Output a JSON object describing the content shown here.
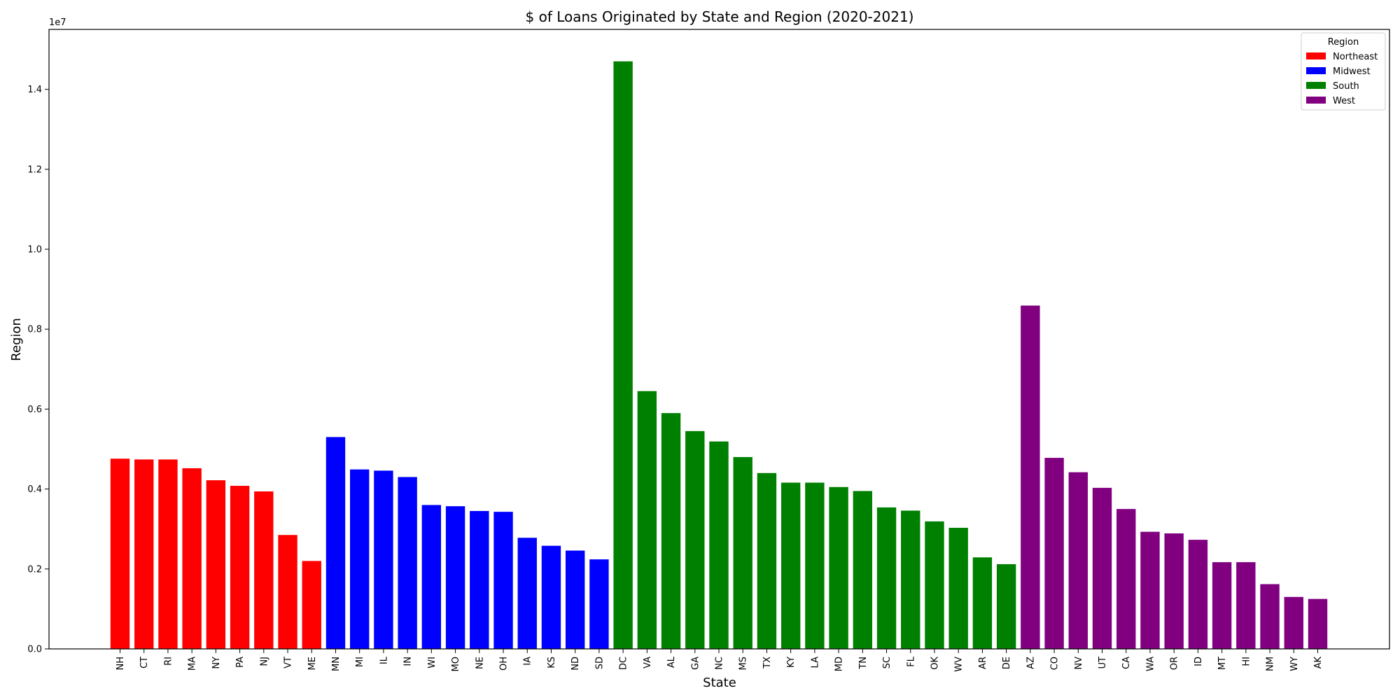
{
  "chart_data": {
    "type": "bar",
    "title": "$ of Loans Originated by State and Region (2020-2021)",
    "xlabel": "State",
    "ylabel": "Region",
    "y_offset_label": "1e7",
    "ylim": [
      0,
      15500000
    ],
    "yticks": [
      0,
      2000000,
      4000000,
      6000000,
      8000000,
      10000000,
      12000000,
      14000000
    ],
    "ytick_labels": [
      "0.0",
      "0.2",
      "0.4",
      "0.6",
      "0.8",
      "1.0",
      "1.2",
      "1.4"
    ],
    "grid": false,
    "legend": {
      "title": "Region",
      "placement": "top-right",
      "entries": [
        {
          "name": "Northeast",
          "color": "#ff0000"
        },
        {
          "name": "Midwest",
          "color": "#0000ff"
        },
        {
          "name": "South",
          "color": "#008000"
        },
        {
          "name": "West",
          "color": "#800080"
        }
      ]
    },
    "categories": [
      "NH",
      "CT",
      "RI",
      "MA",
      "NY",
      "PA",
      "NJ",
      "VT",
      "ME",
      "MN",
      "MI",
      "IL",
      "IN",
      "WI",
      "MO",
      "NE",
      "OH",
      "IA",
      "KS",
      "ND",
      "SD",
      "DC",
      "VA",
      "AL",
      "GA",
      "NC",
      "MS",
      "TX",
      "KY",
      "LA",
      "MD",
      "TN",
      "SC",
      "FL",
      "OK",
      "WV",
      "AR",
      "DE",
      "AZ",
      "CO",
      "NV",
      "UT",
      "CA",
      "WA",
      "OR",
      "ID",
      "MT",
      "HI",
      "NM",
      "WY",
      "AK"
    ],
    "values": [
      4760000,
      4740000,
      4740000,
      4520000,
      4220000,
      4080000,
      3940000,
      2850000,
      2200000,
      5300000,
      4490000,
      4460000,
      4300000,
      3600000,
      3570000,
      3450000,
      3430000,
      2780000,
      2580000,
      2460000,
      2240000,
      14700000,
      6450000,
      5900000,
      5450000,
      5190000,
      4800000,
      4400000,
      4160000,
      4160000,
      4050000,
      3950000,
      3540000,
      3460000,
      3190000,
      3030000,
      2290000,
      2120000,
      8590000,
      4780000,
      4420000,
      4030000,
      3500000,
      2930000,
      2890000,
      2730000,
      2170000,
      2170000,
      1620000,
      1300000,
      1250000
    ],
    "regions": [
      "Northeast",
      "Northeast",
      "Northeast",
      "Northeast",
      "Northeast",
      "Northeast",
      "Northeast",
      "Northeast",
      "Northeast",
      "Midwest",
      "Midwest",
      "Midwest",
      "Midwest",
      "Midwest",
      "Midwest",
      "Midwest",
      "Midwest",
      "Midwest",
      "Midwest",
      "Midwest",
      "Midwest",
      "South",
      "South",
      "South",
      "South",
      "South",
      "South",
      "South",
      "South",
      "South",
      "South",
      "South",
      "South",
      "South",
      "South",
      "South",
      "South",
      "South",
      "West",
      "West",
      "West",
      "West",
      "West",
      "West",
      "West",
      "West",
      "West",
      "West",
      "West",
      "West",
      "West"
    ]
  }
}
